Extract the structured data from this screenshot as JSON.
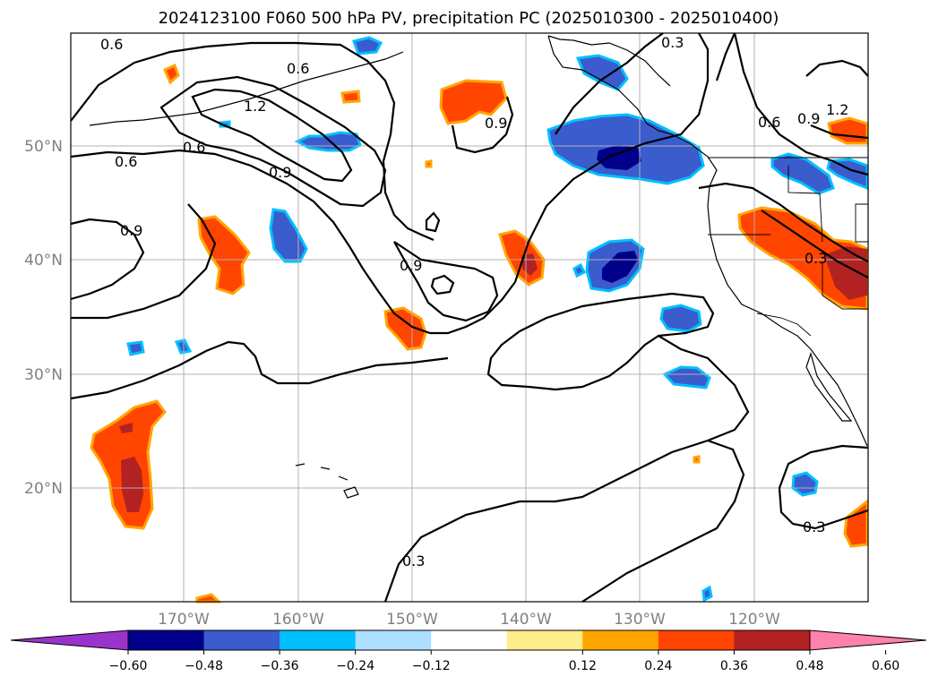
{
  "title": "2024123100 F060 500 hPa PV, precipitation PC (2025010300 - 2025010400)",
  "lat_ticks": [
    "50°N",
    "40°N",
    "30°N",
    "20°N"
  ],
  "lon_ticks": [
    "170°W",
    "160°W",
    "150°W",
    "140°W",
    "130°W",
    "120°W"
  ],
  "colorbar": {
    "ticks": [
      "−0.60",
      "−0.48",
      "−0.36",
      "−0.24",
      "−0.12",
      "0.12",
      "0.24",
      "0.36",
      "0.48",
      "0.60"
    ],
    "colors": [
      "#9a33cc",
      "#00008b",
      "#3a5ccc",
      "#00bfff",
      "#addfff",
      "#ffffff",
      "#ffec8b",
      "#ffa500",
      "#ff4500",
      "#b22222",
      "#ff82ab"
    ]
  },
  "contour_labels": [
    "0.6",
    "0.6",
    "1.2",
    "0.6",
    "0.6",
    "0.9",
    "0.9",
    "0.9",
    "0.9",
    "0.3",
    "1.2",
    "0.9",
    "0.6",
    "0.3",
    "0.3",
    "0.3"
  ],
  "colors": {
    "positive_core": "#b22222",
    "positive": "#ff4500",
    "positive_edge": "#ffa500",
    "negative_core": "#00008b",
    "negative": "#3a5ccc",
    "negative_edge": "#00bfff",
    "grid": "#b0b0b0"
  }
}
